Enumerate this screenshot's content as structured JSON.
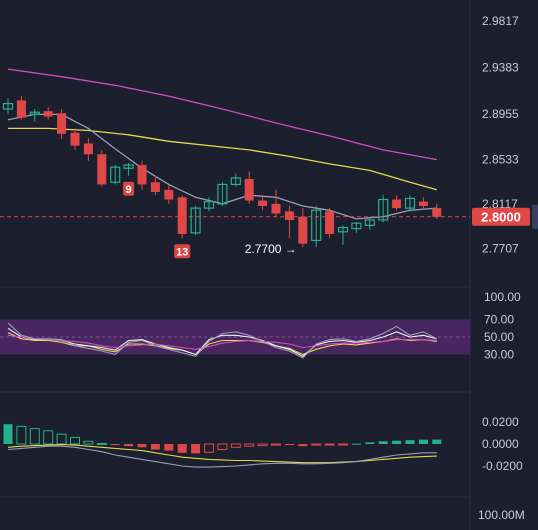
{
  "chart_data": {
    "type": "candlestick",
    "price_axis": {
      "ticks": [
        2.9817,
        2.9383,
        2.8955,
        2.8533,
        2.8117,
        2.7707
      ],
      "ylim": [
        2.758,
        2.99
      ]
    },
    "current_price": {
      "value": 2.8,
      "label": "2.8000",
      "color": "#e04848"
    },
    "low_annotation": {
      "value": 2.77,
      "label": "2.7700",
      "arrow": "→"
    },
    "td_counts": [
      {
        "label": "9",
        "candle": 9
      },
      {
        "label": "13",
        "candle": 13
      }
    ],
    "candles": [
      [
        2.9,
        2.91,
        2.895,
        2.905
      ],
      [
        2.908,
        2.912,
        2.89,
        2.892
      ],
      [
        2.895,
        2.9,
        2.888,
        2.897
      ],
      [
        2.898,
        2.902,
        2.89,
        2.893
      ],
      [
        2.896,
        2.9,
        2.872,
        2.877
      ],
      [
        2.878,
        2.882,
        2.862,
        2.866
      ],
      [
        2.868,
        2.873,
        2.852,
        2.858
      ],
      [
        2.858,
        2.862,
        2.828,
        2.83
      ],
      [
        2.832,
        2.848,
        2.83,
        2.846
      ],
      [
        2.845,
        2.85,
        2.838,
        2.848
      ],
      [
        2.848,
        2.852,
        2.825,
        2.83
      ],
      [
        2.832,
        2.838,
        2.82,
        2.823
      ],
      [
        2.825,
        2.83,
        2.812,
        2.816
      ],
      [
        2.818,
        2.82,
        2.78,
        2.784
      ],
      [
        2.785,
        2.81,
        2.783,
        2.808
      ],
      [
        2.808,
        2.818,
        2.805,
        2.814
      ],
      [
        2.812,
        2.832,
        2.81,
        2.83
      ],
      [
        2.83,
        2.84,
        2.828,
        2.836
      ],
      [
        2.835,
        2.842,
        2.812,
        2.815
      ],
      [
        2.815,
        2.82,
        2.806,
        2.81
      ],
      [
        2.812,
        2.825,
        2.8,
        2.803
      ],
      [
        2.805,
        2.81,
        2.78,
        2.797
      ],
      [
        2.8,
        2.808,
        2.772,
        2.775
      ],
      [
        2.778,
        2.81,
        2.772,
        2.806
      ],
      [
        2.805,
        2.808,
        2.78,
        2.784
      ],
      [
        2.786,
        2.792,
        2.774,
        2.79
      ],
      [
        2.789,
        2.795,
        2.785,
        2.794
      ],
      [
        2.792,
        2.8,
        2.788,
        2.797
      ],
      [
        2.797,
        2.82,
        2.795,
        2.816
      ],
      [
        2.816,
        2.82,
        2.806,
        2.808
      ],
      [
        2.808,
        2.82,
        2.805,
        2.817
      ],
      [
        2.814,
        2.818,
        2.806,
        2.81
      ],
      [
        2.808,
        2.812,
        2.798,
        2.8
      ]
    ],
    "moving_averages": [
      {
        "color": "#d04ec0",
        "points": [
          [
            0,
            2.937
          ],
          [
            4,
            2.93
          ],
          [
            8,
            2.922
          ],
          [
            12,
            2.912
          ],
          [
            16,
            2.9
          ],
          [
            20,
            2.887
          ],
          [
            24,
            2.875
          ],
          [
            28,
            2.862
          ],
          [
            32,
            2.853
          ]
        ]
      },
      {
        "color": "#e6d84a",
        "points": [
          [
            0,
            2.882
          ],
          [
            3,
            2.882
          ],
          [
            6,
            2.88
          ],
          [
            9,
            2.876
          ],
          [
            12,
            2.87
          ],
          [
            15,
            2.866
          ],
          [
            18,
            2.862
          ],
          [
            21,
            2.856
          ],
          [
            24,
            2.849
          ],
          [
            27,
            2.843
          ],
          [
            30,
            2.832
          ],
          [
            32,
            2.825
          ]
        ]
      },
      {
        "color": "#9a9eb8",
        "points": [
          [
            0,
            2.89
          ],
          [
            2,
            2.895
          ],
          [
            4,
            2.895
          ],
          [
            6,
            2.882
          ],
          [
            8,
            2.863
          ],
          [
            10,
            2.845
          ],
          [
            12,
            2.83
          ],
          [
            14,
            2.818
          ],
          [
            16,
            2.812
          ],
          [
            18,
            2.82
          ],
          [
            20,
            2.818
          ],
          [
            22,
            2.81
          ],
          [
            24,
            2.806
          ],
          [
            26,
            2.798
          ],
          [
            28,
            2.8
          ],
          [
            30,
            2.806
          ],
          [
            32,
            2.808
          ]
        ]
      }
    ],
    "rsi": {
      "axis_ticks": [
        100,
        70,
        50,
        30
      ],
      "axis_labels": [
        "100.00",
        "70.00",
        "50.00",
        "30.00"
      ],
      "band": [
        30,
        70
      ],
      "series": [
        {
          "color": "#e6d84a",
          "values": [
            55,
            48,
            46,
            46,
            44,
            40,
            40,
            36,
            33,
            42,
            42,
            40,
            37,
            35,
            30,
            42,
            46,
            46,
            46,
            44,
            40,
            37,
            30,
            36,
            40,
            42,
            41,
            43,
            45,
            48,
            46,
            47,
            45
          ]
        },
        {
          "color": "#f0f0f0",
          "values": [
            60,
            50,
            47,
            47,
            46,
            42,
            40,
            38,
            35,
            46,
            47,
            42,
            38,
            35,
            30,
            47,
            52,
            52,
            50,
            46,
            40,
            36,
            28,
            41,
            45,
            46,
            44,
            46,
            50,
            56,
            50,
            52,
            48
          ]
        },
        {
          "color": "#d04ec0",
          "values": [
            52,
            50,
            48,
            47,
            46,
            45,
            43,
            40,
            38,
            40,
            41,
            42,
            40,
            38,
            36,
            39,
            43,
            45,
            46,
            45,
            44,
            42,
            38,
            40,
            42,
            43,
            43,
            44,
            45,
            47,
            47,
            47,
            46
          ]
        },
        {
          "color": "#9a9eb8",
          "values": [
            66,
            52,
            48,
            48,
            47,
            40,
            37,
            34,
            30,
            44,
            46,
            40,
            36,
            32,
            28,
            45,
            54,
            56,
            52,
            45,
            38,
            34,
            26,
            42,
            47,
            48,
            45,
            48,
            54,
            62,
            52,
            56,
            48
          ]
        }
      ]
    },
    "macd": {
      "axis_ticks": [
        0.02,
        0.0,
        -0.02
      ],
      "axis_labels": [
        "0.0200",
        "0.0000",
        "-0.0200"
      ],
      "histogram": [
        0.018,
        0.016,
        0.014,
        0.012,
        0.009,
        0.006,
        0.0025,
        0.0005,
        -0.001,
        -0.002,
        -0.003,
        -0.005,
        -0.006,
        -0.008,
        -0.0085,
        -0.0075,
        -0.005,
        -0.003,
        -0.002,
        -0.0015,
        -0.001,
        -0.001,
        -0.002,
        -0.001,
        -0.0005,
        -0.0003,
        0.0003,
        0.0015,
        0.0025,
        0.003,
        0.0035,
        0.004,
        0.004
      ],
      "lines": [
        {
          "color": "#e6d84a",
          "values": [
            -0.003,
            -0.002,
            -0.0015,
            -0.001,
            -0.0005,
            -0.001,
            -0.002,
            -0.003,
            -0.004,
            -0.005,
            -0.006,
            -0.008,
            -0.01,
            -0.012,
            -0.013,
            -0.014,
            -0.0145,
            -0.015,
            -0.015,
            -0.0155,
            -0.016,
            -0.0165,
            -0.017,
            -0.017,
            -0.017,
            -0.0165,
            -0.016,
            -0.015,
            -0.014,
            -0.013,
            -0.012,
            -0.0115,
            -0.011
          ]
        },
        {
          "color": "#9a9eb8",
          "values": [
            -0.005,
            -0.004,
            -0.003,
            -0.002,
            -0.002,
            -0.003,
            -0.005,
            -0.007,
            -0.01,
            -0.012,
            -0.014,
            -0.016,
            -0.018,
            -0.02,
            -0.021,
            -0.021,
            -0.0205,
            -0.02,
            -0.019,
            -0.018,
            -0.0175,
            -0.0175,
            -0.018,
            -0.018,
            -0.0175,
            -0.017,
            -0.016,
            -0.014,
            -0.012,
            -0.01,
            -0.009,
            -0.008,
            -0.008
          ]
        }
      ]
    },
    "volume_axis": {
      "labels": [
        "100.00M"
      ]
    },
    "colors": {
      "up": "#26b08c",
      "down": "#e04848",
      "background": "#1b1f2e",
      "grid": "#2a2f40",
      "rsi_band": "#5a2a72"
    }
  }
}
